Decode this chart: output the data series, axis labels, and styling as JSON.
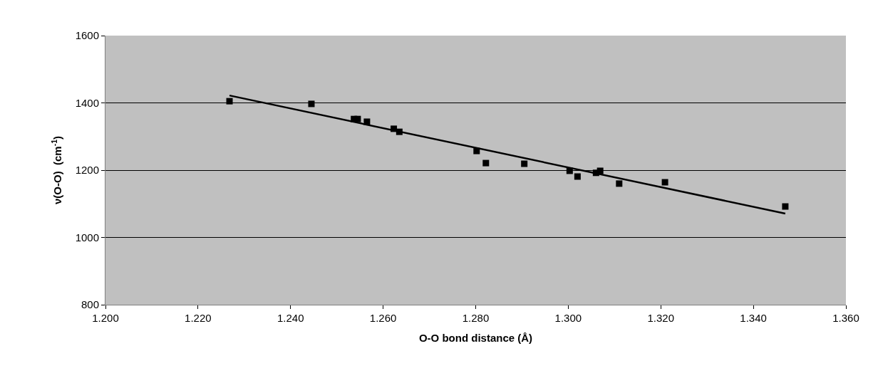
{
  "chart_data": {
    "type": "scatter",
    "xlabel": "O-O bond distance (Å)",
    "ylabel": "ν(O-O)  (cm$^{-1}$)",
    "series": [
      {
        "color": "#000000",
        "marker": "square",
        "x": [
          1.2268,
          1.2445,
          1.2537,
          1.2545,
          1.2565,
          1.2623,
          1.2635,
          1.2802,
          1.2822,
          1.2905,
          1.3003,
          1.302,
          1.306,
          1.3069,
          1.311,
          1.3209,
          1.3469
        ],
        "values": [
          1405,
          1397,
          1352,
          1352,
          1344,
          1323,
          1314,
          1257,
          1221,
          1219,
          1198,
          1181,
          1192,
          1198,
          1160,
          1164,
          1092
        ]
      },
      {
        "type": "line",
        "color": "#000000",
        "marker": "none",
        "line_style": "solid",
        "x": [
          1.2268,
          1.3469
        ],
        "values": [
          1422,
          1071
        ]
      }
    ],
    "xlim": [
      1.2,
      1.36
    ],
    "xticks": [
      {
        "value": 1.2,
        "label": "1.200"
      },
      {
        "value": 1.22,
        "label": "1.220"
      },
      {
        "value": 1.24,
        "label": "1.240"
      },
      {
        "value": 1.26,
        "label": "1.260"
      },
      {
        "value": 1.28,
        "label": "1.280"
      },
      {
        "value": 1.3,
        "label": "1.300"
      },
      {
        "value": 1.32,
        "label": "1.320"
      },
      {
        "value": 1.34,
        "label": "1.340"
      },
      {
        "value": 1.36,
        "label": "1.360"
      }
    ],
    "ylim": [
      800,
      1600
    ],
    "yticks": [
      800,
      1000,
      1200,
      1400,
      1600
    ],
    "grid": "y"
  }
}
